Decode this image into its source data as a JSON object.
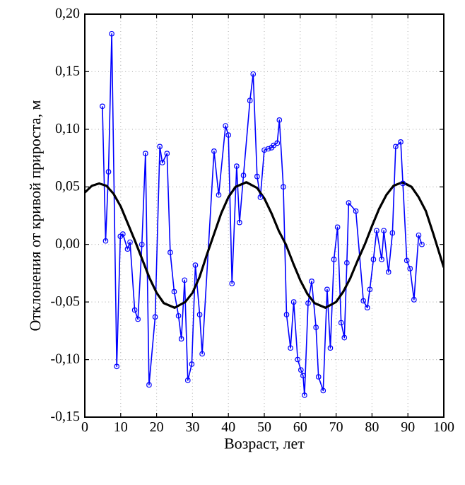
{
  "chart_data": {
    "type": "line",
    "xlabel": "Возраст, лет",
    "ylabel": "Отклонения от кривой прироста, м",
    "xlim": [
      0,
      100
    ],
    "xticks": [
      0,
      10,
      20,
      30,
      40,
      50,
      60,
      70,
      80,
      90,
      100
    ],
    "ylim": [
      -0.15,
      0.2
    ],
    "yticks": [
      {
        "value": -0.15,
        "label": "-0,15"
      },
      {
        "value": -0.1,
        "label": "-0,10"
      },
      {
        "value": -0.05,
        "label": "-0,05"
      },
      {
        "value": 0,
        "label": "0,00"
      },
      {
        "value": 0.05,
        "label": "0,05"
      },
      {
        "value": 0.1,
        "label": "0,10"
      },
      {
        "value": 0.15,
        "label": "0,15"
      },
      {
        "value": 0.2,
        "label": "0,20"
      }
    ],
    "grid": true,
    "series": [
      {
        "color": "#0000ff",
        "marker": "circle",
        "x": [
          4.9,
          5.8,
          6.6,
          7.5,
          8.9,
          9.9,
          10.6,
          11.9,
          12.6,
          13.9,
          14.8,
          15.9,
          16.9,
          17.9,
          19.6,
          20.9,
          21.6,
          22.9,
          23.8,
          24.9,
          26.1,
          26.9,
          27.8,
          28.7,
          29.8,
          30.8,
          32.0,
          32.7,
          36.0,
          37.3,
          39.2,
          40.0,
          41.0,
          42.3,
          43.1,
          44.2,
          46.0,
          46.9,
          48.0,
          48.9,
          50.0,
          51.1,
          52.0,
          52.6,
          53.6,
          54.2,
          55.3,
          56.2,
          57.3,
          58.2,
          59.3,
          60.2,
          60.8,
          61.2,
          62.2,
          63.2,
          64.4,
          65.1,
          66.4,
          67.5,
          68.4,
          69.4,
          70.4,
          71.4,
          72.3,
          73.0,
          73.5,
          75.5,
          77.6,
          78.7,
          79.4,
          80.4,
          81.3,
          82.7,
          83.3,
          84.6,
          85.7,
          86.6,
          88.0,
          88.6,
          89.7,
          90.6,
          91.7,
          93.0,
          93.9
        ],
        "values": [
          0.12,
          0.003,
          0.063,
          0.183,
          -0.106,
          0.007,
          0.009,
          -0.004,
          0.002,
          -0.057,
          -0.065,
          0.0,
          0.079,
          -0.122,
          -0.063,
          0.085,
          0.071,
          0.079,
          -0.007,
          -0.041,
          -0.062,
          -0.082,
          -0.031,
          -0.118,
          -0.104,
          -0.018,
          -0.061,
          -0.095,
          0.081,
          0.043,
          0.103,
          0.095,
          -0.034,
          0.068,
          0.019,
          0.06,
          0.125,
          0.148,
          0.059,
          0.041,
          0.082,
          0.083,
          0.084,
          0.086,
          0.088,
          0.108,
          0.05,
          -0.061,
          -0.09,
          -0.05,
          -0.1,
          -0.109,
          -0.114,
          -0.131,
          -0.051,
          -0.032,
          -0.072,
          -0.115,
          -0.127,
          -0.039,
          -0.09,
          -0.013,
          0.015,
          -0.068,
          -0.081,
          -0.016,
          0.036,
          0.029,
          -0.049,
          -0.055,
          -0.039,
          -0.013,
          0.012,
          -0.013,
          0.012,
          -0.024,
          0.01,
          0.085,
          0.089,
          0.053,
          -0.014,
          -0.021,
          -0.048,
          0.008,
          0.0
        ]
      },
      {
        "color": "#000000",
        "marker": "none",
        "x": [
          0,
          2,
          4,
          6,
          8,
          10,
          12,
          14,
          16,
          18,
          20,
          22,
          25,
          28,
          30,
          32,
          34,
          36,
          38,
          40,
          42,
          45,
          48,
          50,
          52,
          54,
          56,
          58,
          60,
          62,
          64,
          67,
          70,
          72,
          74,
          76,
          78,
          80,
          82,
          84,
          86,
          88.5,
          91,
          93,
          95,
          97,
          99,
          100
        ],
        "values": [
          0.045,
          0.051,
          0.053,
          0.051,
          0.044,
          0.033,
          0.018,
          0.003,
          -0.013,
          -0.029,
          -0.042,
          -0.051,
          -0.055,
          -0.05,
          -0.042,
          -0.028,
          -0.009,
          0.009,
          0.027,
          0.041,
          0.05,
          0.054,
          0.049,
          0.04,
          0.027,
          0.012,
          0.0,
          -0.016,
          -0.031,
          -0.043,
          -0.051,
          -0.055,
          -0.05,
          -0.041,
          -0.029,
          -0.014,
          0.0,
          0.016,
          0.031,
          0.043,
          0.051,
          0.054,
          0.05,
          0.041,
          0.029,
          0.01,
          -0.01,
          -0.02
        ]
      }
    ]
  }
}
